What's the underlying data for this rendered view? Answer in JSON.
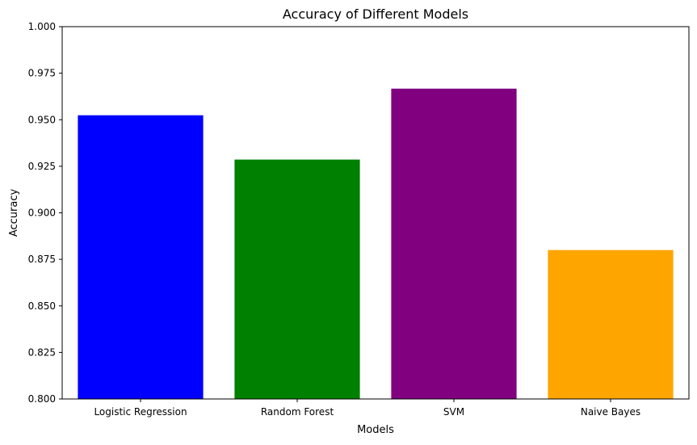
{
  "chart_data": {
    "type": "bar",
    "title": "Accuracy of Different Models",
    "xlabel": "Models",
    "ylabel": "Accuracy",
    "categories": [
      "Logistic Regression",
      "Random Forest",
      "SVM",
      "Naive Bayes"
    ],
    "values": [
      0.9524,
      0.9286,
      0.9667,
      0.88
    ],
    "colors": [
      "#0000ff",
      "#008000",
      "#800080",
      "#ffa500"
    ],
    "ylim": [
      0.8,
      1.0
    ],
    "yticks": [
      0.8,
      0.825,
      0.85,
      0.875,
      0.9,
      0.925,
      0.95,
      0.975,
      1.0
    ],
    "ytick_labels": [
      "0.800",
      "0.825",
      "0.850",
      "0.875",
      "0.900",
      "0.925",
      "0.950",
      "0.975",
      "1.000"
    ],
    "grid": false,
    "legend": "none"
  }
}
